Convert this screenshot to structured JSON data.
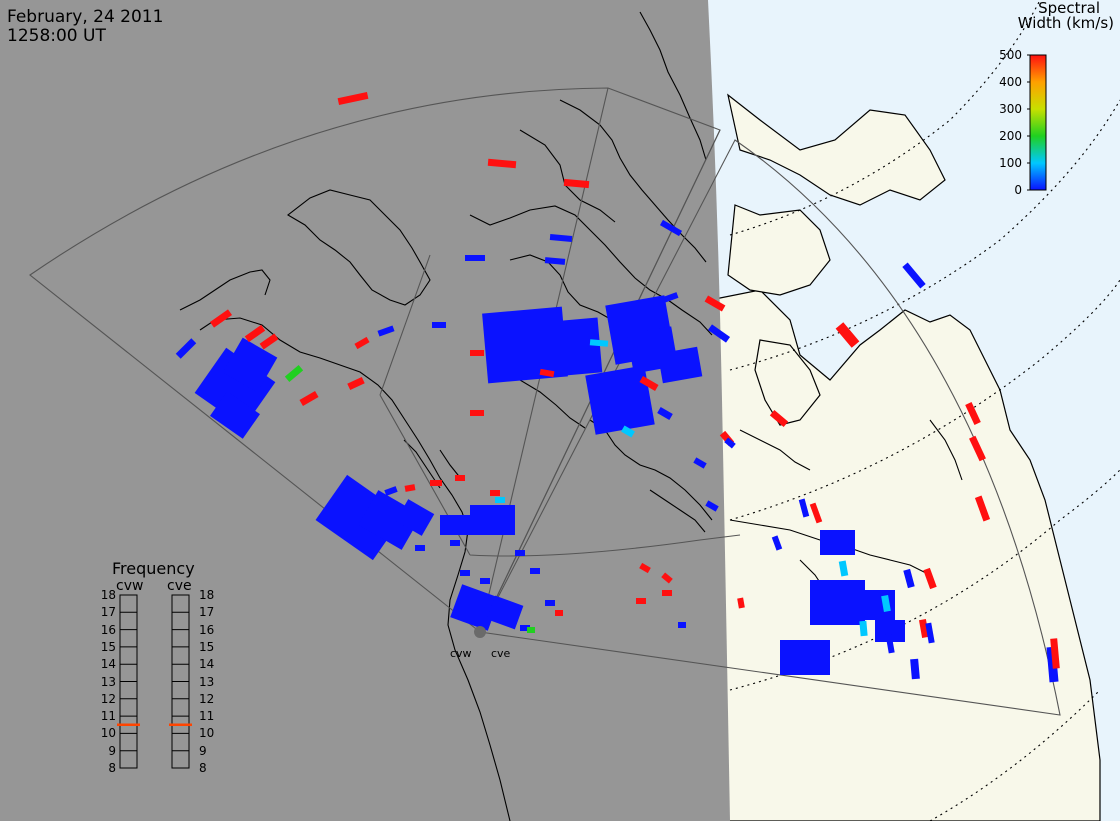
{
  "header": {
    "date": "February, 24 2011",
    "time": "1258:00 UT"
  },
  "colorbar": {
    "title_line1": "Spectral",
    "title_line2": "Width (km/s)",
    "ticks": [
      "500",
      "400",
      "300",
      "200",
      "100",
      "0"
    ],
    "min": 0,
    "max": 500,
    "colors": [
      "#0a12ff",
      "#00c8ff",
      "#20d020",
      "#c8e000",
      "#ffa000",
      "#ff1010"
    ]
  },
  "frequency": {
    "title": "Frequency",
    "radars": [
      {
        "code": "cvw",
        "value_mhz": 11,
        "marker_color": "#ff4400"
      },
      {
        "code": "cve",
        "value_mhz": 11,
        "marker_color": "#ff4400"
      }
    ],
    "ticks": [
      "18",
      "17",
      "16",
      "15",
      "14",
      "13",
      "12",
      "11",
      "10",
      "9",
      "8"
    ],
    "min": 8,
    "max": 18
  },
  "radar_labels": [
    "cvw",
    "cve"
  ],
  "map_colors": {
    "night": "#969696",
    "land": "#f8f8ea",
    "sea": "#e8f4fc",
    "coast": "#000000",
    "fov_outline": "#555555",
    "grid": "#000000"
  }
}
